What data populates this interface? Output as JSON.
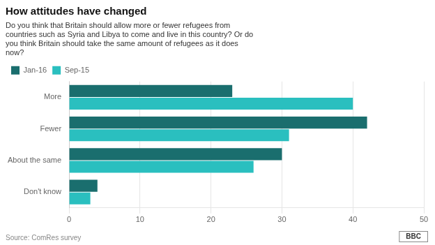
{
  "chart_data": {
    "type": "bar",
    "orientation": "horizontal",
    "title": "How attitudes have changed",
    "subtitle": "Do you think that Britain should allow more or fewer refugees from\ncountries such as Syria and Libya to come and live in this country? Or do\nyou think Britain should take the same amount of refugees as it does\nnow?",
    "categories": [
      "Don't know",
      "About the same",
      "Fewer",
      "More"
    ],
    "series": [
      {
        "name": "Jan-16",
        "color": "#1a6e6e",
        "values": [
          4,
          30,
          42,
          23
        ]
      },
      {
        "name": "Sep-15",
        "color": "#2abfbf",
        "values": [
          3,
          26,
          31,
          40
        ]
      }
    ],
    "xlim": [
      0,
      50
    ],
    "xticks": [
      0,
      10,
      20,
      30,
      40,
      50
    ],
    "grid": true,
    "legend": "upper left",
    "annotations": [
      "Source: ComRes survey",
      "BBC"
    ]
  }
}
